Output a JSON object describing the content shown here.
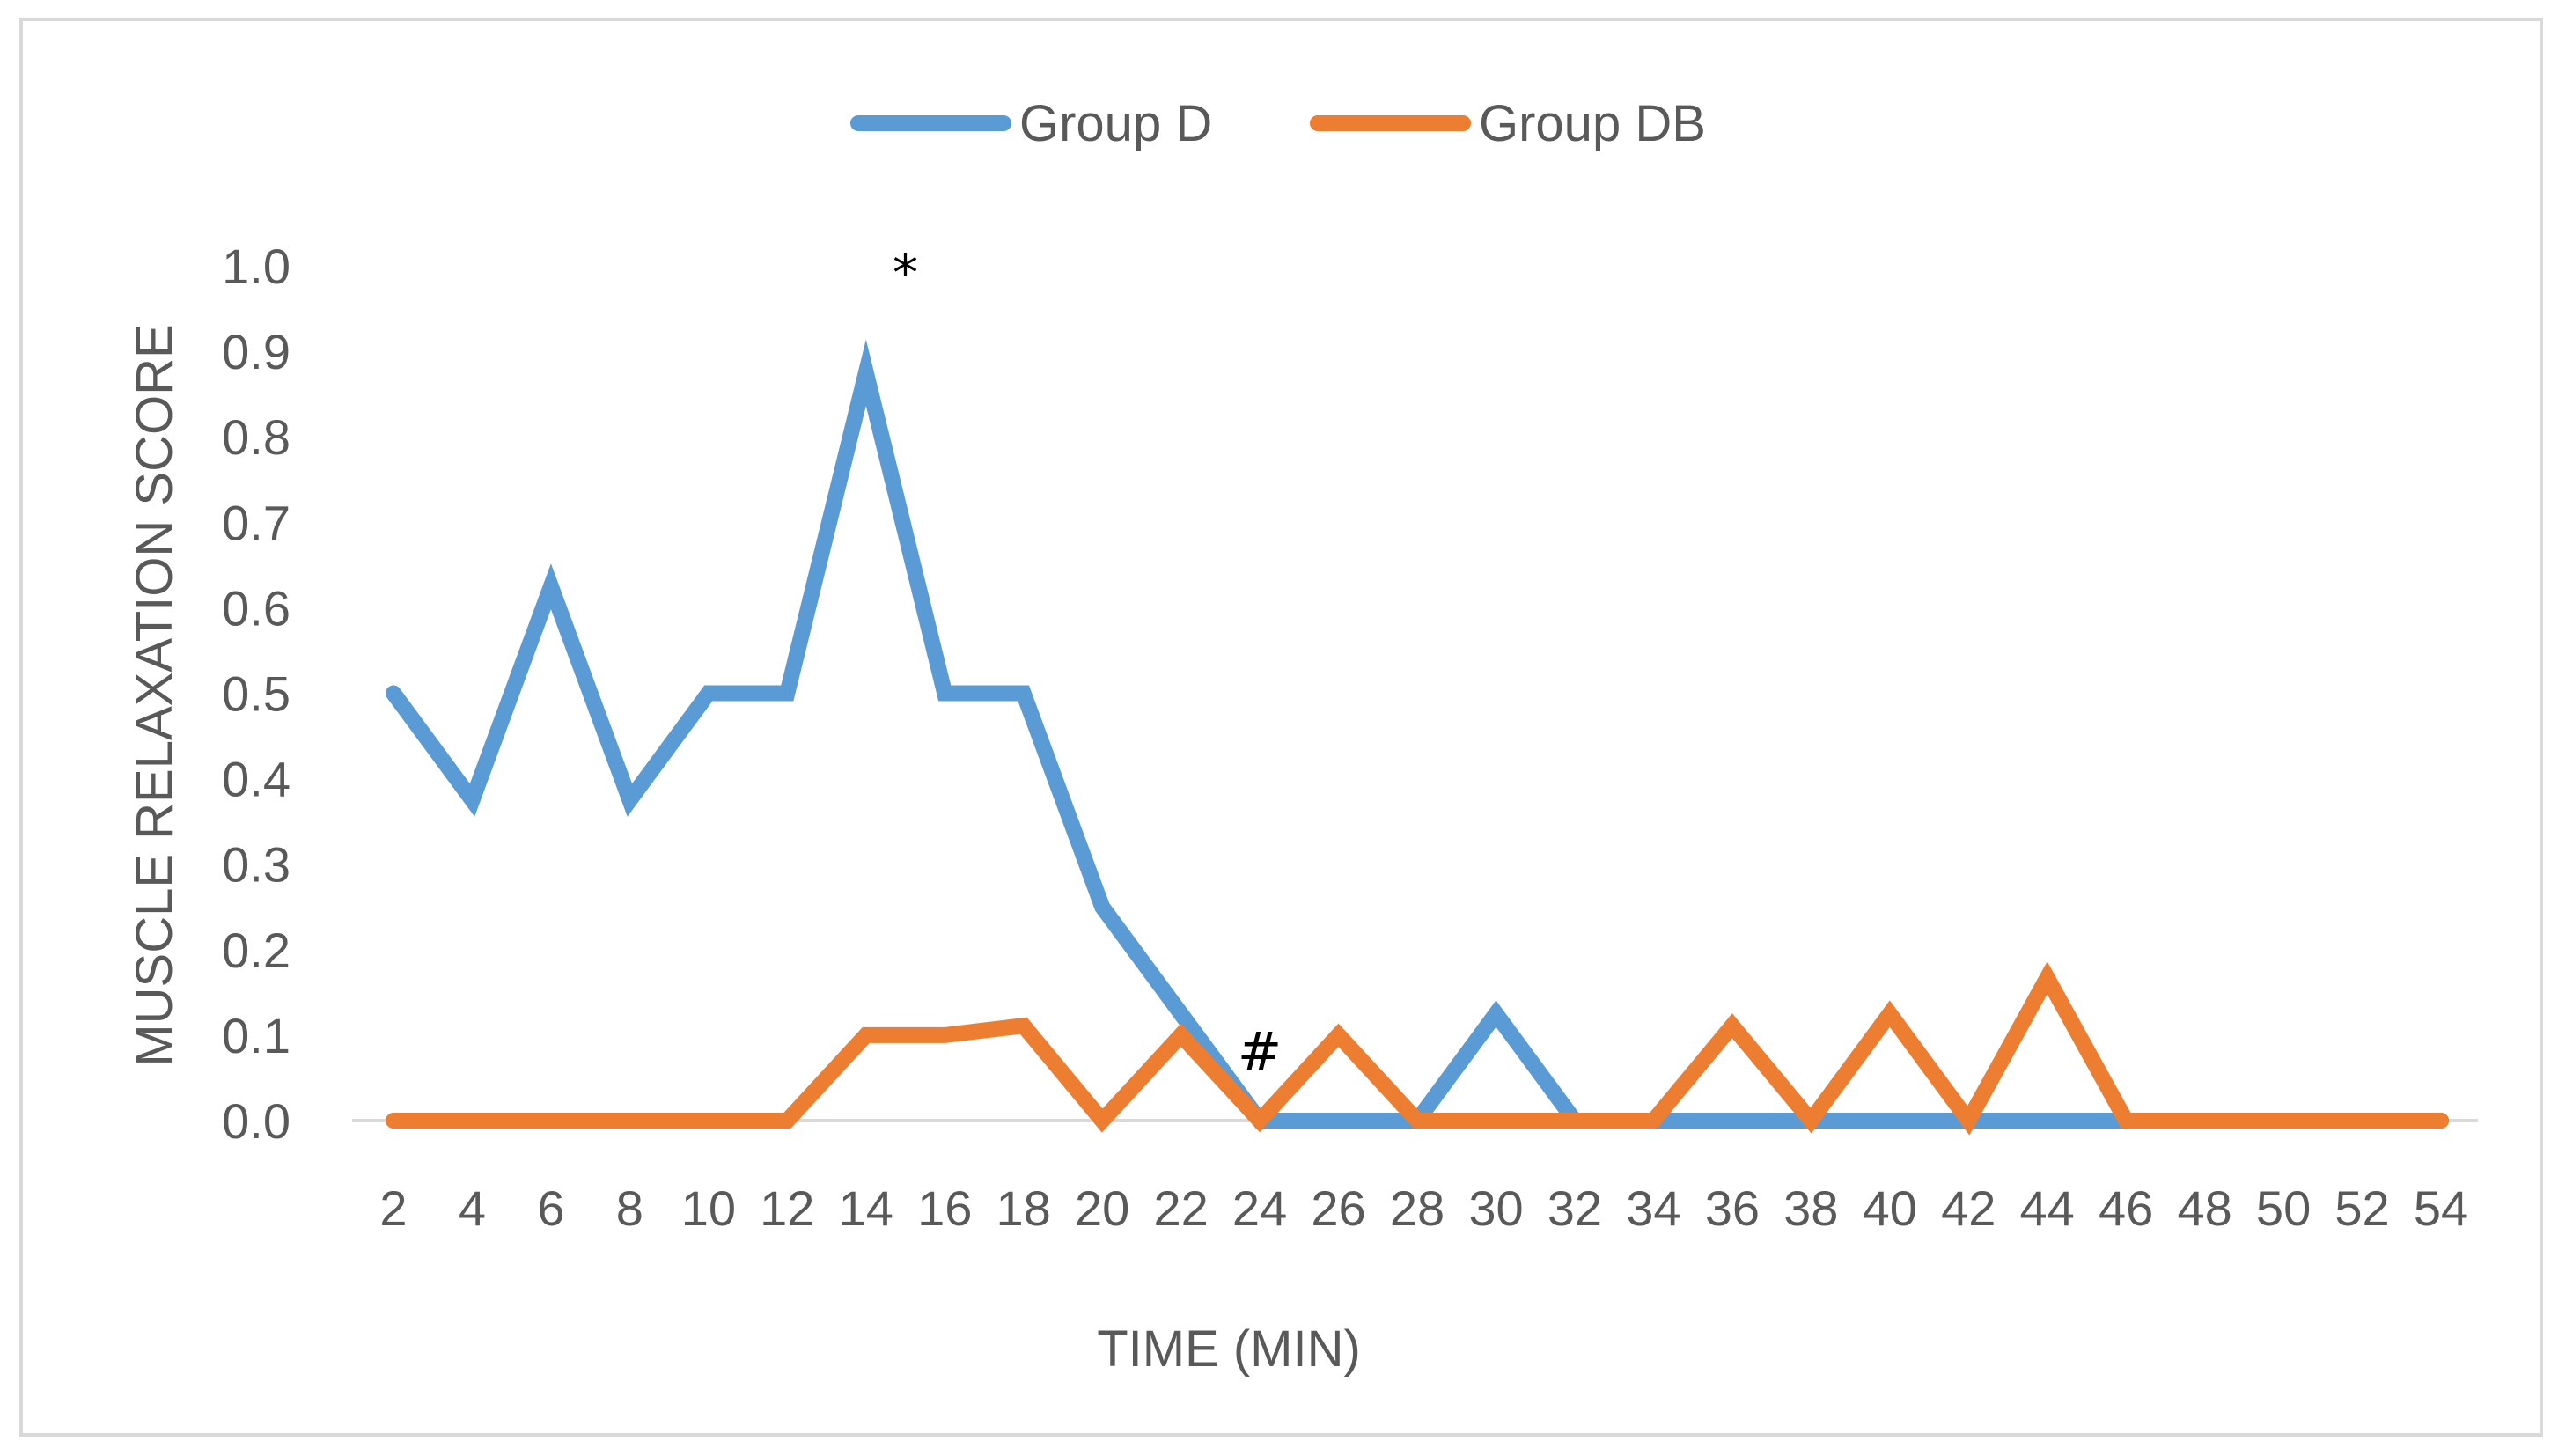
{
  "chart_data": {
    "type": "line",
    "title": "",
    "xlabel": "TIME (MIN)",
    "ylabel": "MUSCLE RELAXATION SCORE",
    "ylim": [
      0,
      1.0
    ],
    "yticks": [
      "0.0",
      "0.1",
      "0.2",
      "0.3",
      "0.4",
      "0.5",
      "0.6",
      "0.7",
      "0.8",
      "0.9",
      "1.0"
    ],
    "categories": [
      "2",
      "4",
      "6",
      "8",
      "10",
      "12",
      "14",
      "16",
      "18",
      "20",
      "22",
      "24",
      "26",
      "28",
      "30",
      "32",
      "34",
      "36",
      "38",
      "40",
      "42",
      "44",
      "46",
      "48",
      "50",
      "52",
      "54"
    ],
    "legend_position": "top",
    "grid": false,
    "series": [
      {
        "name": "Group D",
        "color": "#5b9bd5",
        "values": [
          0.5,
          0.375,
          0.625,
          0.375,
          0.5,
          0.5,
          0.875,
          0.5,
          0.5,
          0.25,
          0.125,
          0,
          0,
          0,
          0.125,
          0,
          0,
          0,
          0,
          0,
          0,
          0,
          0,
          0,
          0,
          0,
          0
        ]
      },
      {
        "name": "Group DB",
        "color": "#ed7d31",
        "values": [
          0,
          0,
          0,
          0,
          0,
          0,
          0.1,
          0.1,
          0.111,
          0,
          0.1,
          0,
          0.1,
          0,
          0,
          0,
          0,
          0.111,
          0,
          0.125,
          0,
          0.167,
          0,
          0,
          0,
          0,
          0
        ]
      }
    ],
    "annotations": [
      {
        "text": "*",
        "x": "15",
        "y": 1.0
      },
      {
        "text": "#",
        "x": "24",
        "y": 0.07
      }
    ]
  }
}
